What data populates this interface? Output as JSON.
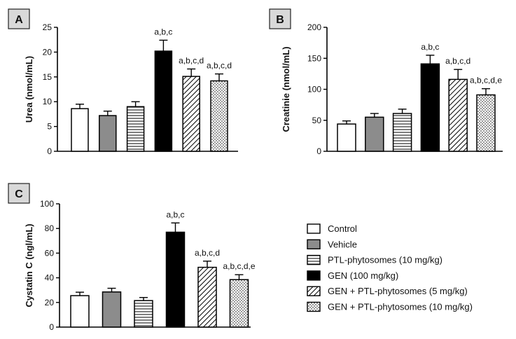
{
  "legend": [
    {
      "label": "Control",
      "pattern": "white"
    },
    {
      "label": "Vehicle",
      "pattern": "gray"
    },
    {
      "label": "PTL-phytosomes (10 mg/kg)",
      "pattern": "hlines"
    },
    {
      "label": "GEN (100 mg/kg)",
      "pattern": "black"
    },
    {
      "label": "GEN + PTL-phytosomes (5 mg/kg)",
      "pattern": "diag"
    },
    {
      "label": "GEN + PTL-phytosomes (10 mg/kg)",
      "pattern": "dots"
    }
  ],
  "colors": {
    "gray_fill": "#8c8c8c",
    "black_fill": "#000000",
    "panel_label_bg": "#d9d9d9"
  },
  "chart_data": [
    {
      "panel": "A",
      "type": "bar",
      "ylabel": "Urea (nmol/mL)",
      "ylim": [
        0,
        25
      ],
      "yticks": [
        0,
        5,
        10,
        15,
        20,
        25
      ],
      "series": [
        {
          "name": "Control",
          "value": 8.6,
          "error": 0.9,
          "annotation": ""
        },
        {
          "name": "Vehicle",
          "value": 7.2,
          "error": 0.9,
          "annotation": ""
        },
        {
          "name": "PTL-phytosomes (10 mg/kg)",
          "value": 9.0,
          "error": 1.0,
          "annotation": ""
        },
        {
          "name": "GEN (100 mg/kg)",
          "value": 20.2,
          "error": 2.2,
          "annotation": "a,b,c"
        },
        {
          "name": "GEN + PTL-phytosomes (5 mg/kg)",
          "value": 15.1,
          "error": 1.5,
          "annotation": "a,b,c,d"
        },
        {
          "name": "GEN + PTL-phytosomes (10 mg/kg)",
          "value": 14.2,
          "error": 1.4,
          "annotation": "a,b,c,d"
        }
      ]
    },
    {
      "panel": "B",
      "type": "bar",
      "ylabel": "Creatinie (nmol/mL)",
      "ylim": [
        0,
        200
      ],
      "yticks": [
        0,
        50,
        100,
        150,
        200
      ],
      "series": [
        {
          "name": "Control",
          "value": 44,
          "error": 5,
          "annotation": ""
        },
        {
          "name": "Vehicle",
          "value": 55,
          "error": 6,
          "annotation": ""
        },
        {
          "name": "PTL-phytosomes (10 mg/kg)",
          "value": 61,
          "error": 7,
          "annotation": ""
        },
        {
          "name": "GEN (100 mg/kg)",
          "value": 141,
          "error": 14,
          "annotation": "a,b,c"
        },
        {
          "name": "GEN + PTL-phytosomes (5 mg/kg)",
          "value": 116,
          "error": 16,
          "annotation": "a,b,c,d"
        },
        {
          "name": "GEN + PTL-phytosomes (10 mg/kg)",
          "value": 91,
          "error": 10,
          "annotation": "a,b,c,d,e"
        }
      ]
    },
    {
      "panel": "C",
      "type": "bar",
      "ylabel": "Cystatin C (ngl/mL)",
      "ylim": [
        0,
        100
      ],
      "yticks": [
        0,
        20,
        40,
        60,
        80,
        100
      ],
      "series": [
        {
          "name": "Control",
          "value": 25.5,
          "error": 2.8,
          "annotation": ""
        },
        {
          "name": "Vehicle",
          "value": 28.5,
          "error": 3.0,
          "annotation": ""
        },
        {
          "name": "PTL-phytosomes (10 mg/kg)",
          "value": 21.5,
          "error": 2.5,
          "annotation": ""
        },
        {
          "name": "GEN (100 mg/kg)",
          "value": 77,
          "error": 7.5,
          "annotation": "a,b,c"
        },
        {
          "name": "GEN + PTL-phytosomes (5 mg/kg)",
          "value": 48.5,
          "error": 5,
          "annotation": "a,b,c,d"
        },
        {
          "name": "GEN + PTL-phytosomes (10 mg/kg)",
          "value": 38.5,
          "error": 4,
          "annotation": "a,b,c,d,e"
        }
      ]
    }
  ]
}
